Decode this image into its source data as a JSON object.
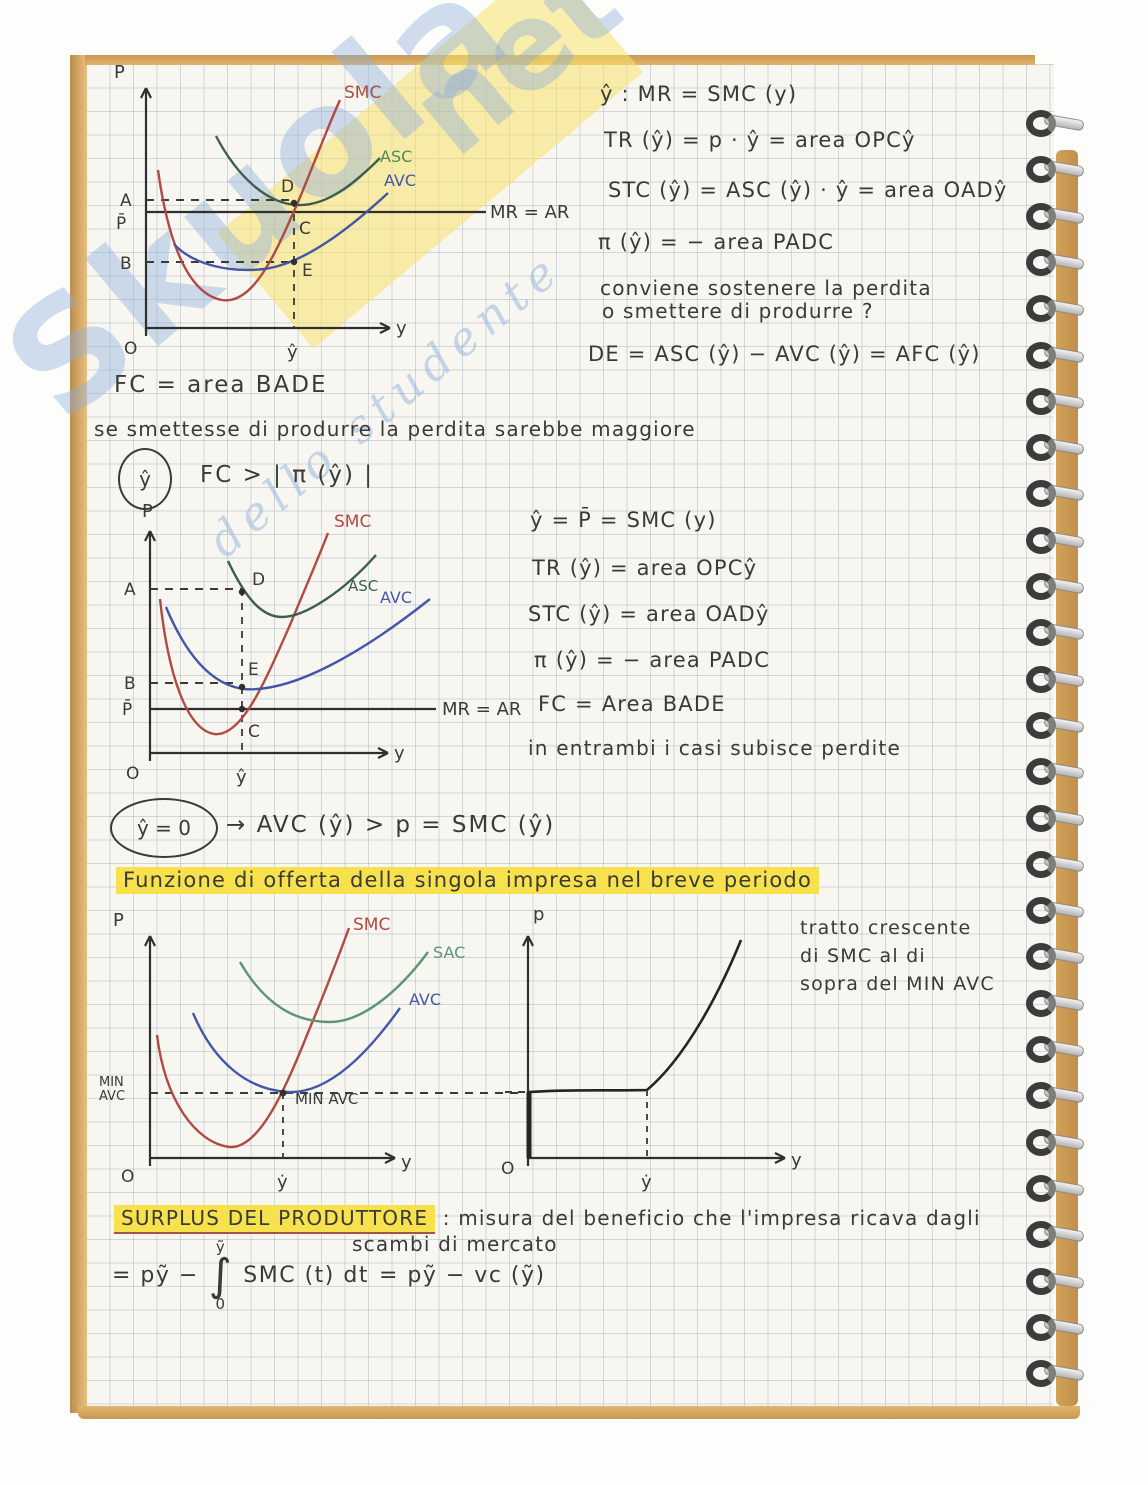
{
  "watermark": {
    "brand": "Skuola",
    "net": "net",
    "tagline": "dello studente"
  },
  "colors": {
    "ink": "#3a3a38",
    "smc": "#b04a42",
    "asc_green": "#4e8a57",
    "asc_dark": "#3c5e4c",
    "sac": "#5b9577",
    "avc": "#4456a8",
    "highlight": "#f7e14d",
    "axis": "#2f2f2f"
  },
  "graph1": {
    "p_axis": "P",
    "x_axis": "y",
    "origin": "O",
    "a": "A",
    "p_bar": "P̄",
    "b": "B",
    "d": "D",
    "c": "C",
    "e": "E",
    "y_hat": "ŷ",
    "smc": "SMC",
    "asc": "ASC",
    "avc": "AVC",
    "mr": "MR = AR"
  },
  "eq1": {
    "l1": "ŷ :   MR = SMC (y)",
    "l2": "TR (ŷ) = p · ŷ =  area  OPCŷ",
    "l3": "STC (ŷ) = ASC (ŷ) · ŷ =  area  OADŷ",
    "l4": "π (ŷ) = − area  PADC",
    "l5a": "conviene sostenere la perdita",
    "l5b": "o smettere di produrre ?",
    "l6": "DE = ASC (ŷ) − AVC (ŷ)  = AFC (ŷ)"
  },
  "fc_line": "FC =  area  BADE",
  "se_line": "se smettesse di produrre la perdita sarebbe maggiore",
  "cond1": {
    "badge": "ŷ",
    "text": "FC  >  | π (ŷ) |"
  },
  "graph2": {
    "p_axis": "P",
    "x_axis": "y",
    "origin": "O",
    "a": "A",
    "b": "B",
    "p_bar": "P̄",
    "d": "D",
    "e": "E",
    "c": "C",
    "y_hat": "ŷ",
    "smc": "SMC",
    "asc": "ASC",
    "avc": "AVC",
    "mr": "MR = AR"
  },
  "eq2": {
    "l1": "ŷ =  P̄ = SMC (y)",
    "l2": "TR (ŷ) =  area  OPCŷ",
    "l3": "STC (ŷ) =  area  OADŷ",
    "l4": "π (ŷ) =  −  area  PADC",
    "l5": "FC =  Area  BADE",
    "l6": "in entrambi i casi subisce perdite"
  },
  "cond2": {
    "badge": "ŷ = 0",
    "text": "→   AVC (ŷ) > p  =  SMC (ŷ)"
  },
  "section_title": "Funzione di offerta della singola impresa nel breve periodo",
  "graph3": {
    "p_axis": "P",
    "x_axis": "y",
    "origin": "O",
    "min1": "MIN",
    "min2": "AVC",
    "min_avc": "MIN AVC",
    "y_dot": "ẏ",
    "smc": "SMC",
    "sac": "SAC",
    "avc": "AVC"
  },
  "graph4": {
    "p_axis": "p",
    "x_axis": "y",
    "origin": "O",
    "y_dot": "ẏ"
  },
  "note3": {
    "l1": "tratto crescente",
    "l2": "di SMC al di",
    "l3": "sopra del MIN AVC"
  },
  "surplus": {
    "title": "SURPLUS  DEL  PRODUTTORE",
    "def1": ": misura del beneficio che l'impresa ricava dagli",
    "def2": "scambi di mercato"
  },
  "formula": {
    "lhs": "=  pỹ −",
    "upper": "ỹ",
    "int": "∫",
    "lower": "0",
    "mid": "SMC (t) dt",
    "rhs": "=  pỹ − vc (ỹ)"
  }
}
